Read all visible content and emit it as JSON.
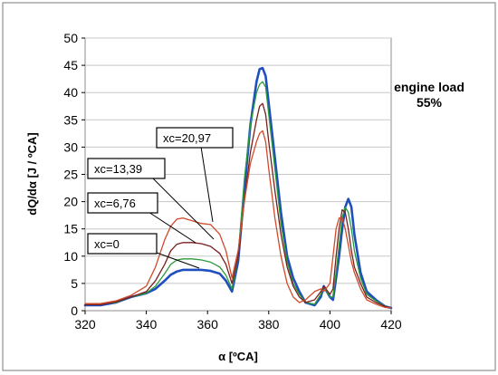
{
  "chart_data": {
    "type": "line",
    "xlabel": "α [ºCA]",
    "ylabel": "dQ/dα [J / ºCA]",
    "xlim": [
      320,
      420
    ],
    "ylim": [
      0,
      50
    ],
    "x_ticks": [
      320,
      340,
      360,
      380,
      400,
      420
    ],
    "y_ticks": [
      0,
      5,
      10,
      15,
      20,
      25,
      30,
      35,
      40,
      45,
      50
    ],
    "annotation": {
      "line1": "engine load",
      "line2": "55%"
    },
    "labels": [
      {
        "text": "xc=20,97",
        "series": 3
      },
      {
        "text": "xc=13,39",
        "series": 2
      },
      {
        "text": "xc=6,76",
        "series": 1
      },
      {
        "text": "xc=0",
        "series": 0
      }
    ],
    "series": [
      {
        "color": "#1f4fbf",
        "points": [
          [
            320,
            1.0
          ],
          [
            325,
            1.0
          ],
          [
            330,
            1.5
          ],
          [
            335,
            2.5
          ],
          [
            340,
            3.2
          ],
          [
            343,
            4.0
          ],
          [
            346,
            5.5
          ],
          [
            348,
            6.6
          ],
          [
            350,
            7.2
          ],
          [
            352,
            7.5
          ],
          [
            355,
            7.5
          ],
          [
            358,
            7.5
          ],
          [
            361,
            7.3
          ],
          [
            364,
            6.8
          ],
          [
            366,
            5.5
          ],
          [
            368,
            3.5
          ],
          [
            370,
            9
          ],
          [
            372,
            22
          ],
          [
            374,
            34
          ],
          [
            376,
            42
          ],
          [
            377,
            44.3
          ],
          [
            378,
            44.5
          ],
          [
            379,
            43
          ],
          [
            380,
            38
          ],
          [
            382,
            28
          ],
          [
            384,
            18
          ],
          [
            386,
            10
          ],
          [
            388,
            6
          ],
          [
            390,
            3.5
          ],
          [
            392,
            1.5
          ],
          [
            395,
            1
          ],
          [
            397,
            2.5
          ],
          [
            398,
            4.5
          ],
          [
            400,
            2.5
          ],
          [
            401,
            2
          ],
          [
            402,
            6
          ],
          [
            403,
            10
          ],
          [
            404,
            15
          ],
          [
            405,
            19
          ],
          [
            406,
            20.5
          ],
          [
            407,
            19
          ],
          [
            408,
            14
          ],
          [
            410,
            7
          ],
          [
            412,
            3.5
          ],
          [
            415,
            2
          ],
          [
            418,
            0.8
          ],
          [
            420,
            0.5
          ]
        ]
      },
      {
        "color": "#2a9a3a",
        "points": [
          [
            320,
            1.2
          ],
          [
            325,
            1.2
          ],
          [
            330,
            1.5
          ],
          [
            335,
            2.5
          ],
          [
            340,
            3.2
          ],
          [
            343,
            4.5
          ],
          [
            346,
            6.8
          ],
          [
            348,
            8.5
          ],
          [
            350,
            9.3
          ],
          [
            352,
            9.5
          ],
          [
            355,
            9.5
          ],
          [
            358,
            9.3
          ],
          [
            361,
            8.9
          ],
          [
            364,
            8
          ],
          [
            366,
            6.5
          ],
          [
            368,
            4
          ],
          [
            370,
            10
          ],
          [
            372,
            24
          ],
          [
            374,
            34
          ],
          [
            376,
            40
          ],
          [
            377,
            41.5
          ],
          [
            378,
            42
          ],
          [
            379,
            41
          ],
          [
            380,
            36
          ],
          [
            382,
            26
          ],
          [
            384,
            16
          ],
          [
            386,
            9
          ],
          [
            388,
            5
          ],
          [
            390,
            3
          ],
          [
            392,
            1.5
          ],
          [
            395,
            1.2
          ],
          [
            397,
            3
          ],
          [
            398,
            4.5
          ],
          [
            400,
            2.5
          ],
          [
            401,
            2.5
          ],
          [
            402,
            7
          ],
          [
            403,
            12
          ],
          [
            404,
            17
          ],
          [
            405,
            19
          ],
          [
            406,
            18
          ],
          [
            407,
            15
          ],
          [
            408,
            11
          ],
          [
            410,
            6
          ],
          [
            412,
            3
          ],
          [
            415,
            1.8
          ],
          [
            418,
            0.8
          ],
          [
            420,
            0.5
          ]
        ]
      },
      {
        "color": "#7a1e1e",
        "points": [
          [
            320,
            1.1
          ],
          [
            325,
            1.1
          ],
          [
            330,
            1.6
          ],
          [
            335,
            2.5
          ],
          [
            340,
            3.5
          ],
          [
            343,
            5.5
          ],
          [
            346,
            8.5
          ],
          [
            348,
            11
          ],
          [
            350,
            12.2
          ],
          [
            352,
            12.5
          ],
          [
            355,
            12.5
          ],
          [
            358,
            12.3
          ],
          [
            361,
            11.8
          ],
          [
            364,
            10.5
          ],
          [
            366,
            8.5
          ],
          [
            368,
            5
          ],
          [
            370,
            10
          ],
          [
            372,
            20
          ],
          [
            374,
            29
          ],
          [
            376,
            35
          ],
          [
            377,
            37.5
          ],
          [
            378,
            38
          ],
          [
            379,
            36
          ],
          [
            380,
            31
          ],
          [
            382,
            22
          ],
          [
            384,
            14
          ],
          [
            386,
            8
          ],
          [
            388,
            4.5
          ],
          [
            390,
            2.5
          ],
          [
            392,
            1.5
          ],
          [
            395,
            2
          ],
          [
            397,
            3.5
          ],
          [
            398,
            4.5
          ],
          [
            400,
            3
          ],
          [
            401,
            4
          ],
          [
            402,
            10
          ],
          [
            403,
            15
          ],
          [
            404,
            18.5
          ],
          [
            405,
            18
          ],
          [
            406,
            15
          ],
          [
            407,
            11
          ],
          [
            408,
            8
          ],
          [
            410,
            5
          ],
          [
            412,
            2.5
          ],
          [
            415,
            1.5
          ],
          [
            418,
            0.8
          ],
          [
            420,
            0.5
          ]
        ]
      },
      {
        "color": "#d04a2a",
        "points": [
          [
            320,
            1.3
          ],
          [
            325,
            1.3
          ],
          [
            330,
            1.8
          ],
          [
            335,
            2.8
          ],
          [
            340,
            4.5
          ],
          [
            343,
            8
          ],
          [
            346,
            13
          ],
          [
            348,
            15.5
          ],
          [
            350,
            16.8
          ],
          [
            352,
            17
          ],
          [
            355,
            16.5
          ],
          [
            358,
            16
          ],
          [
            361,
            15.8
          ],
          [
            364,
            14
          ],
          [
            366,
            11
          ],
          [
            368,
            6
          ],
          [
            370,
            11
          ],
          [
            372,
            20
          ],
          [
            374,
            27
          ],
          [
            376,
            31
          ],
          [
            377,
            32.5
          ],
          [
            378,
            33
          ],
          [
            379,
            31
          ],
          [
            380,
            26
          ],
          [
            382,
            17
          ],
          [
            384,
            10
          ],
          [
            386,
            5
          ],
          [
            388,
            2.5
          ],
          [
            390,
            1.5
          ],
          [
            392,
            2
          ],
          [
            395,
            3.5
          ],
          [
            397,
            4
          ],
          [
            398,
            3.5
          ],
          [
            400,
            5
          ],
          [
            401,
            10
          ],
          [
            402,
            15
          ],
          [
            403,
            17
          ],
          [
            404,
            17
          ],
          [
            405,
            15
          ],
          [
            406,
            12
          ],
          [
            407,
            9
          ],
          [
            408,
            7
          ],
          [
            410,
            4
          ],
          [
            412,
            2
          ],
          [
            415,
            1.2
          ],
          [
            418,
            0.6
          ],
          [
            420,
            0.5
          ]
        ]
      }
    ]
  }
}
